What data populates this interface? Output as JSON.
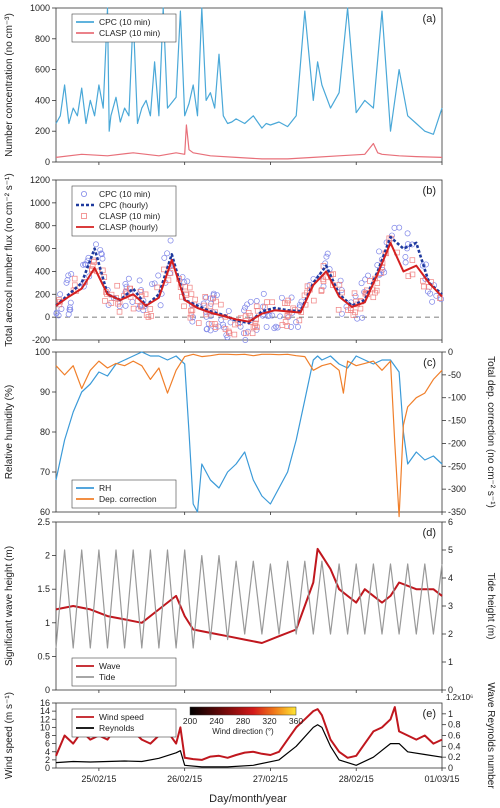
{
  "figure": {
    "xlabel": "Day/month/year",
    "x_ticks": [
      "25/02/15",
      "26/02/15",
      "27/02/15",
      "28/02/15",
      "01/03/15"
    ]
  },
  "chart_data": [
    {
      "id": "a",
      "panel_label": "(a)",
      "type": "line",
      "ylabel": "Number concentration (no cm⁻³)",
      "ylim": [
        0,
        1000
      ],
      "yticks": [
        0,
        200,
        400,
        600,
        800,
        1000
      ],
      "legend_position": "top-left",
      "legend": [
        "CPC (10 min)",
        "CLASP (10 min)"
      ],
      "series": [
        {
          "name": "CPC (10 min)",
          "color": "#4aa8d8",
          "style": "solid",
          "x": [
            0,
            0.05,
            0.1,
            0.15,
            0.2,
            0.25,
            0.3,
            0.35,
            0.4,
            0.45,
            0.5,
            0.55,
            0.6,
            0.62,
            0.64,
            0.7,
            0.75,
            0.8,
            0.85,
            0.9,
            0.95,
            1.0,
            1.05,
            1.1,
            1.15,
            1.2,
            1.25,
            1.3,
            1.4,
            1.45,
            1.5,
            1.55,
            1.6,
            1.65,
            1.7,
            1.75,
            1.8,
            1.85,
            1.9,
            1.95,
            2.0,
            2.05,
            2.1,
            2.2,
            2.3,
            2.4,
            2.45,
            2.5,
            2.6,
            2.7,
            2.8,
            2.9,
            3.0,
            3.05,
            3.1,
            3.2,
            3.3,
            3.4,
            3.5,
            3.6,
            3.7,
            3.8,
            3.9,
            4.0,
            4.1,
            4.2,
            4.3,
            4.4,
            4.5
          ],
          "y": [
            250,
            300,
            500,
            250,
            350,
            300,
            480,
            250,
            400,
            300,
            500,
            350,
            1000,
            200,
            300,
            420,
            260,
            350,
            300,
            950,
            250,
            350,
            400,
            300,
            650,
            300,
            1000,
            350,
            420,
            980,
            300,
            380,
            500,
            300,
            1000,
            400,
            450,
            350,
            700,
            300,
            250,
            260,
            280,
            250,
            300,
            220,
            250,
            240,
            260,
            230,
            300,
            980,
            400,
            650,
            500,
            350,
            450,
            1000,
            320,
            400,
            350,
            980,
            200,
            600,
            300,
            250,
            200,
            180,
            350
          ]
        },
        {
          "name": "CLASP (10 min)",
          "color": "#e8707a",
          "style": "solid",
          "x": [
            0,
            0.3,
            0.6,
            0.9,
            1.2,
            1.4,
            1.5,
            1.52,
            1.55,
            1.6,
            1.8,
            2.1,
            2.4,
            2.7,
            3.0,
            3.3,
            3.6,
            3.7,
            3.75,
            3.8,
            4.0,
            4.2,
            4.5
          ],
          "y": [
            30,
            50,
            40,
            60,
            40,
            60,
            50,
            240,
            80,
            60,
            40,
            30,
            20,
            20,
            30,
            40,
            50,
            120,
            60,
            50,
            40,
            35,
            30
          ]
        }
      ]
    },
    {
      "id": "b",
      "panel_label": "(b)",
      "type": "line",
      "ylabel": "Total aerosol number flux (no cm⁻² s⁻¹)",
      "ylim": [
        -200,
        1200
      ],
      "yticks": [
        -200,
        0,
        200,
        400,
        600,
        800,
        1000,
        1200
      ],
      "zero_line": true,
      "legend_position": "top-left",
      "legend": [
        "CPC (10 min)",
        "CPC (hourly)",
        "CLASP (10 min)",
        "CLASP (hourly)"
      ],
      "series": [
        {
          "name": "CPC (hourly)",
          "color": "#1f3a9e",
          "style": "dashed",
          "x": [
            0,
            0.15,
            0.3,
            0.45,
            0.6,
            0.75,
            0.9,
            1.05,
            1.2,
            1.35,
            1.5,
            1.65,
            1.8,
            1.95,
            2.1,
            2.25,
            2.4,
            2.55,
            2.7,
            2.85,
            3.0,
            3.15,
            3.3,
            3.45,
            3.6,
            3.75,
            3.9,
            4.05,
            4.2,
            4.35,
            4.5
          ],
          "y": [
            100,
            200,
            300,
            600,
            200,
            150,
            250,
            100,
            200,
            550,
            150,
            100,
            50,
            20,
            -30,
            -50,
            50,
            80,
            60,
            50,
            300,
            450,
            200,
            100,
            150,
            400,
            700,
            600,
            650,
            300,
            200
          ]
        },
        {
          "name": "CLASP (hourly)",
          "color": "#d42020",
          "style": "solid",
          "x": [
            0,
            0.15,
            0.3,
            0.45,
            0.6,
            0.75,
            0.9,
            1.05,
            1.2,
            1.35,
            1.5,
            1.65,
            1.8,
            1.95,
            2.1,
            2.25,
            2.4,
            2.55,
            2.7,
            2.85,
            3.0,
            3.15,
            3.3,
            3.45,
            3.6,
            3.75,
            3.9,
            4.05,
            4.2,
            4.35,
            4.5
          ],
          "y": [
            100,
            180,
            250,
            430,
            200,
            150,
            200,
            100,
            170,
            500,
            150,
            80,
            40,
            10,
            -20,
            -40,
            30,
            60,
            50,
            40,
            280,
            400,
            180,
            90,
            130,
            380,
            650,
            400,
            450,
            300,
            180
          ]
        }
      ],
      "scatter_series": [
        {
          "name": "CPC (10 min)",
          "marker": "circle",
          "color": "#7f86e8",
          "spread": 180,
          "follows": "CPC (hourly)"
        },
        {
          "name": "CLASP (10 min)",
          "marker": "square",
          "color": "#f08080",
          "spread": 140,
          "follows": "CLASP (hourly)"
        }
      ]
    },
    {
      "id": "c",
      "panel_label": "(c)",
      "type": "line",
      "ylabel": "Relative humidity (%)",
      "ylabel_right": "Total dep. correction (no cm⁻² s⁻¹)",
      "ylim": [
        60,
        100
      ],
      "yticks": [
        60,
        70,
        80,
        90,
        100
      ],
      "ylim_right": [
        -350,
        0
      ],
      "yticks_right": [
        -350,
        -300,
        -250,
        -200,
        -150,
        -100,
        -50,
        0
      ],
      "legend_position": "bottom-left",
      "legend": [
        "RH",
        "Dep. correction"
      ],
      "series": [
        {
          "name": "RH",
          "axis": "left",
          "color": "#3b9ad8",
          "style": "solid",
          "x": [
            0,
            0.1,
            0.2,
            0.3,
            0.4,
            0.5,
            0.6,
            0.7,
            0.8,
            0.9,
            1.0,
            1.1,
            1.2,
            1.3,
            1.4,
            1.5,
            1.55,
            1.6,
            1.65,
            1.7,
            1.8,
            1.9,
            2.0,
            2.1,
            2.2,
            2.3,
            2.4,
            2.5,
            2.6,
            2.7,
            2.8,
            2.9,
            3.0,
            3.05,
            3.1,
            3.2,
            3.3,
            3.4,
            3.5,
            3.6,
            3.7,
            3.8,
            3.9,
            4.0,
            4.05,
            4.1,
            4.2,
            4.3,
            4.4,
            4.5
          ],
          "y": [
            68,
            78,
            85,
            90,
            92,
            95,
            94,
            97,
            98,
            99,
            100,
            99,
            99,
            98,
            99,
            97,
            80,
            62,
            60,
            72,
            68,
            66,
            70,
            72,
            75,
            68,
            64,
            62,
            66,
            70,
            78,
            88,
            98,
            99,
            98,
            99,
            97,
            96,
            99,
            98,
            97,
            98,
            98,
            95,
            80,
            72,
            75,
            73,
            74,
            72
          ]
        },
        {
          "name": "Dep. correction",
          "axis": "right",
          "color": "#f07f2a",
          "style": "solid",
          "x": [
            0,
            0.1,
            0.2,
            0.3,
            0.4,
            0.5,
            0.6,
            0.7,
            0.8,
            0.9,
            1.0,
            1.1,
            1.2,
            1.3,
            1.4,
            1.5,
            1.6,
            1.7,
            1.8,
            1.9,
            2.0,
            2.1,
            2.2,
            2.3,
            2.4,
            2.5,
            2.6,
            2.7,
            2.8,
            2.9,
            3.0,
            3.1,
            3.2,
            3.3,
            3.35,
            3.4,
            3.5,
            3.6,
            3.7,
            3.8,
            3.9,
            3.95,
            4.0,
            4.05,
            4.1,
            4.2,
            4.3,
            4.4,
            4.5
          ],
          "y": [
            -30,
            -50,
            -30,
            -80,
            -40,
            -20,
            -35,
            -25,
            -30,
            -20,
            -30,
            -60,
            -35,
            -90,
            -40,
            -10,
            -5,
            -10,
            -8,
            -5,
            -5,
            -6,
            -5,
            -8,
            -5,
            -5,
            -6,
            -5,
            -8,
            -10,
            -40,
            -30,
            -25,
            -40,
            -90,
            -20,
            -30,
            -25,
            -20,
            -40,
            -20,
            -200,
            -360,
            -160,
            -120,
            -100,
            -90,
            -60,
            -40
          ]
        }
      ]
    },
    {
      "id": "d",
      "panel_label": "(d)",
      "type": "line",
      "ylabel": "Significant wave height (m)",
      "ylabel_right": "Tide height (m)",
      "ylim": [
        0,
        2.5
      ],
      "yticks": [
        0.0,
        0.5,
        1.0,
        1.5,
        2.0,
        2.5
      ],
      "ylim_right": [
        0,
        6
      ],
      "yticks_right": [
        0,
        1,
        2,
        3,
        4,
        5,
        6
      ],
      "legend_position": "bottom-left",
      "legend": [
        "Wave",
        "Tide"
      ],
      "series": [
        {
          "name": "Wave",
          "axis": "left",
          "color": "#c0171e",
          "style": "solid",
          "x": [
            0,
            0.2,
            0.4,
            0.6,
            0.8,
            1.0,
            1.2,
            1.4,
            1.5,
            1.6,
            1.8,
            2.0,
            2.2,
            2.4,
            2.6,
            2.8,
            3.0,
            3.05,
            3.1,
            3.2,
            3.3,
            3.4,
            3.5,
            3.6,
            3.7,
            3.8,
            3.9,
            4.0,
            4.2,
            4.4,
            4.5
          ],
          "y": [
            1.2,
            1.25,
            1.2,
            1.1,
            1.05,
            1.0,
            1.2,
            1.4,
            1.1,
            0.9,
            0.85,
            0.8,
            0.75,
            0.7,
            0.8,
            0.9,
            1.6,
            2.1,
            2.0,
            1.8,
            1.5,
            1.4,
            1.3,
            1.5,
            1.4,
            1.3,
            1.4,
            1.6,
            1.5,
            1.5,
            1.4
          ]
        },
        {
          "name": "Tide",
          "axis": "right",
          "color": "#999999",
          "style": "solid",
          "x": [
            0,
            0.1,
            0.2,
            0.3,
            0.4,
            0.5,
            0.6,
            0.7,
            0.8,
            0.9,
            1.0,
            1.1,
            1.2,
            1.3,
            1.4,
            1.5,
            1.6,
            1.7,
            1.8,
            1.9,
            2.0,
            2.1,
            2.2,
            2.3,
            2.4,
            2.5,
            2.6,
            2.7,
            2.8,
            2.9,
            3.0,
            3.1,
            3.2,
            3.3,
            3.4,
            3.5,
            3.6,
            3.7,
            3.8,
            3.9,
            4.0,
            4.1,
            4.2,
            4.3,
            4.4,
            4.5
          ],
          "y": [
            1.5,
            5.0,
            1.5,
            5.0,
            1.5,
            5.0,
            1.5,
            5.0,
            1.5,
            5.0,
            1.5,
            5.0,
            1.5,
            5.0,
            1.5,
            5.0,
            1.5,
            4.8,
            1.8,
            4.8,
            1.8,
            4.6,
            2.0,
            4.6,
            2.0,
            4.5,
            2.0,
            4.6,
            2.0,
            4.6,
            2.0,
            4.6,
            2.0,
            4.5,
            2.0,
            4.5,
            2.0,
            4.5,
            2.0,
            4.5,
            2.0,
            4.5,
            2.0,
            4.5,
            2.0,
            4.5
          ]
        }
      ]
    },
    {
      "id": "e",
      "panel_label": "(e)",
      "type": "line",
      "ylabel": "Wind speed (m s⁻¹)",
      "ylabel_right": "Wave Reynolds number",
      "right_axis_multiplier": "1.2x10⁶",
      "ylim": [
        0,
        16
      ],
      "yticks": [
        0,
        2,
        4,
        6,
        8,
        10,
        12,
        14,
        16
      ],
      "ylim_right": [
        0,
        1.2
      ],
      "yticks_right": [
        0.0,
        0.2,
        0.4,
        0.6,
        0.8,
        1.0
      ],
      "legend_position": "top-left",
      "legend": [
        "Wind speed",
        "Reynolds"
      ],
      "colorbar": {
        "title": "Wind direction (°)",
        "ticks": [
          200,
          240,
          280,
          320,
          360
        ],
        "range": [
          200,
          360
        ]
      },
      "series": [
        {
          "name": "Wind speed",
          "axis": "left",
          "color": "#c0171e",
          "style": "solid",
          "x": [
            0,
            0.1,
            0.2,
            0.3,
            0.4,
            0.5,
            0.6,
            0.7,
            0.8,
            0.9,
            1.0,
            1.1,
            1.2,
            1.3,
            1.4,
            1.45,
            1.5,
            1.6,
            1.7,
            1.8,
            1.9,
            2.0,
            2.1,
            2.2,
            2.3,
            2.4,
            2.5,
            2.6,
            2.7,
            2.8,
            2.9,
            3.0,
            3.05,
            3.1,
            3.2,
            3.3,
            3.4,
            3.5,
            3.6,
            3.7,
            3.8,
            3.9,
            3.95,
            4.0,
            4.1,
            4.2,
            4.3,
            4.4,
            4.5
          ],
          "y": [
            3,
            8,
            6,
            9,
            7,
            8,
            7,
            10,
            8,
            9,
            7,
            6,
            8,
            9,
            6,
            10,
            2.5,
            2.2,
            2,
            2.8,
            3,
            2.5,
            3.2,
            3.8,
            4,
            3.5,
            3.2,
            4,
            7,
            10,
            12,
            14,
            14.5,
            13,
            7,
            4,
            2.5,
            3,
            6,
            9,
            10,
            12,
            15,
            9,
            8,
            7,
            8,
            6,
            7
          ]
        },
        {
          "name": "Reynolds",
          "axis": "right",
          "color": "#000000",
          "style": "solid",
          "x": [
            0,
            0.2,
            0.4,
            0.6,
            0.8,
            1.0,
            1.2,
            1.4,
            1.45,
            1.5,
            1.7,
            2.0,
            2.3,
            2.6,
            2.8,
            3.0,
            3.05,
            3.1,
            3.2,
            3.3,
            3.5,
            3.7,
            3.9,
            4.0,
            4.1,
            4.3,
            4.5
          ],
          "y": [
            0.1,
            0.12,
            0.11,
            0.12,
            0.13,
            0.12,
            0.18,
            0.28,
            0.32,
            0.05,
            0.02,
            0.02,
            0.05,
            0.15,
            0.4,
            0.75,
            0.8,
            0.75,
            0.4,
            0.15,
            0.05,
            0.2,
            0.45,
            0.45,
            0.3,
            0.25,
            0.2
          ]
        }
      ]
    }
  ]
}
